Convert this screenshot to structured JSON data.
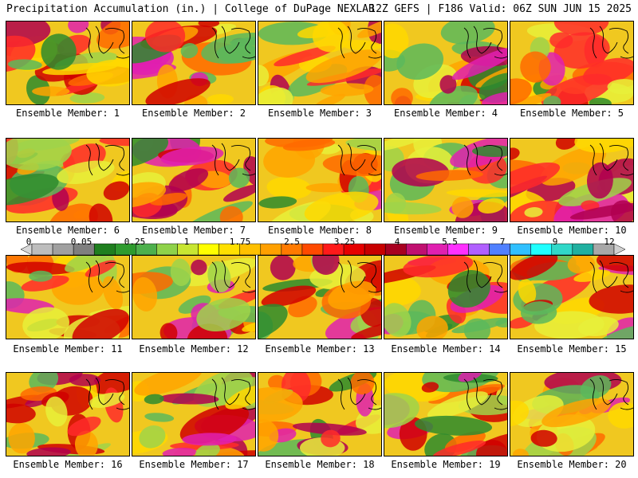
{
  "header": {
    "title_left": "Precipitation Accumulation (in.) | College of DuPage NEXLAB",
    "title_right": "12Z GEFS | F186 Valid: 06Z SUN JUN 15 2025"
  },
  "panels": [
    {
      "label": "Ensemble Member: 1"
    },
    {
      "label": "Ensemble Member: 2"
    },
    {
      "label": "Ensemble Member: 3"
    },
    {
      "label": "Ensemble Member: 4"
    },
    {
      "label": "Ensemble Member: 5"
    },
    {
      "label": "Ensemble Member: 6"
    },
    {
      "label": "Ensemble Member: 7"
    },
    {
      "label": "Ensemble Member: 8"
    },
    {
      "label": "Ensemble Member: 9"
    },
    {
      "label": "Ensemble Member: 10"
    },
    {
      "label": "Ensemble Member: 11"
    },
    {
      "label": "Ensemble Member: 12"
    },
    {
      "label": "Ensemble Member: 13"
    },
    {
      "label": "Ensemble Member: 14"
    },
    {
      "label": "Ensemble Member: 15"
    },
    {
      "label": "Ensemble Member: 16"
    },
    {
      "label": "Ensemble Member: 17"
    },
    {
      "label": "Ensemble Member: 18"
    },
    {
      "label": "Ensemble Member: 19"
    },
    {
      "label": "Ensemble Member: 20"
    }
  ],
  "colorbar": {
    "tick_labels": [
      "0",
      "0.05",
      "0.25",
      "1",
      "1.75",
      "2.5",
      "3.25",
      "4",
      "5.5",
      "7",
      "9",
      "12"
    ],
    "colors": [
      "#d8d8d8",
      "#bdbdbd",
      "#a0a0a0",
      "#7f7f7f",
      "#1f7f1f",
      "#2e9b2e",
      "#4db04d",
      "#8fd24a",
      "#c8e632",
      "#ffff00",
      "#ffe000",
      "#ffc000",
      "#ffa000",
      "#ff7a00",
      "#ff4a00",
      "#ff1a1a",
      "#e60000",
      "#c80000",
      "#a80020",
      "#c01070",
      "#e020b0",
      "#ff30ff",
      "#b060ff",
      "#5080ff",
      "#30c0ff",
      "#20ffff",
      "#30d8c8",
      "#20b0a0",
      "#a8a8a8",
      "#d0d0d0"
    ]
  }
}
